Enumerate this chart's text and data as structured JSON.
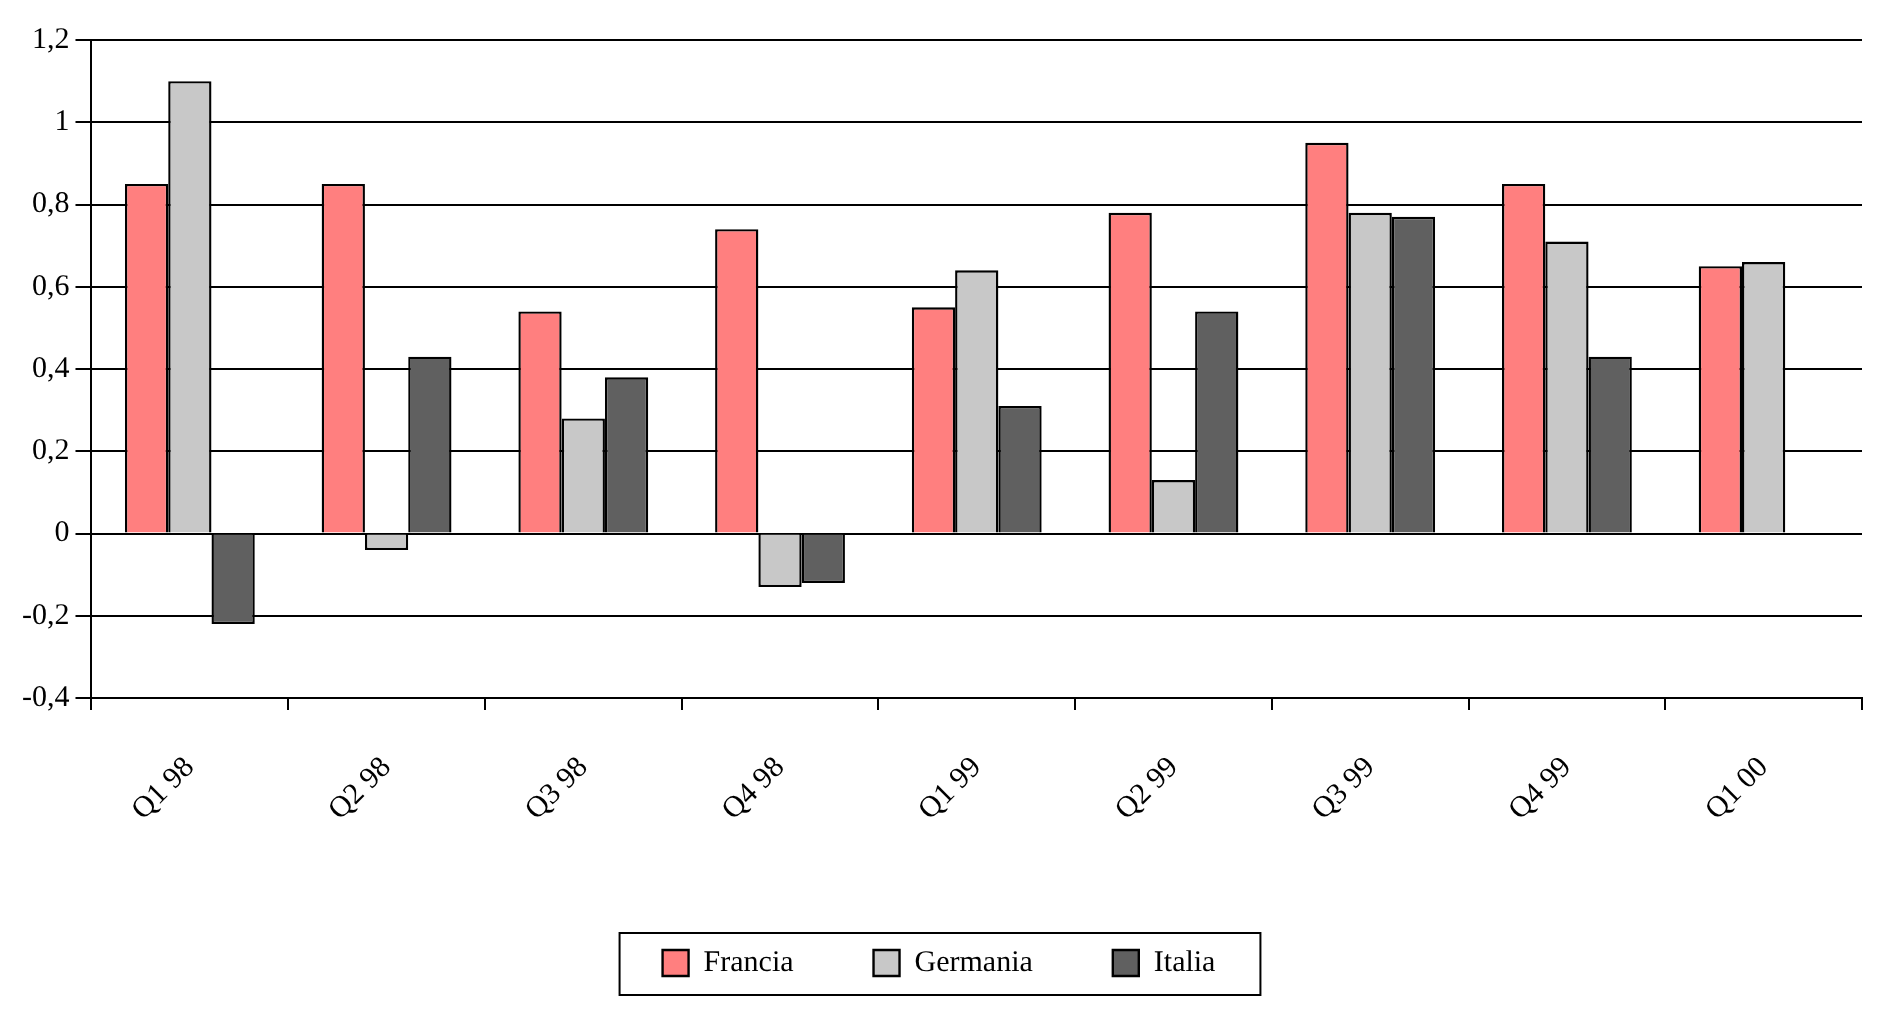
{
  "chart_data": {
    "type": "bar",
    "categories": [
      "Q1 98",
      "Q2 98",
      "Q3 98",
      "Q4 98",
      "Q1 99",
      "Q2 99",
      "Q3 99",
      "Q4 99",
      "Q1 00"
    ],
    "series": [
      {
        "name": "Francia",
        "color": "#ff7f7f",
        "values": [
          0.85,
          0.85,
          0.54,
          0.74,
          0.55,
          0.78,
          0.95,
          0.85,
          0.65
        ]
      },
      {
        "name": "Germania",
        "color": "#c8c8c8",
        "values": [
          1.1,
          -0.04,
          0.28,
          -0.13,
          0.64,
          0.13,
          0.78,
          0.71,
          0.66
        ]
      },
      {
        "name": "Italia",
        "color": "#606060",
        "values": [
          -0.22,
          0.43,
          0.38,
          -0.12,
          0.31,
          0.54,
          0.77,
          0.43,
          null
        ]
      }
    ],
    "ylim": [
      -0.4,
      1.2
    ],
    "yticks": [
      {
        "value": -0.4,
        "label": "-0,4"
      },
      {
        "value": -0.2,
        "label": "-0,2"
      },
      0,
      {
        "value": 0.2,
        "label": "0,2"
      },
      {
        "value": 0.4,
        "label": "0,4"
      },
      {
        "value": 0.6,
        "label": "0,6"
      },
      {
        "value": 0.8,
        "label": "0,8"
      },
      1,
      {
        "value": 1.2,
        "label": "1,2"
      }
    ],
    "grid": "y",
    "legend": "bottom"
  }
}
